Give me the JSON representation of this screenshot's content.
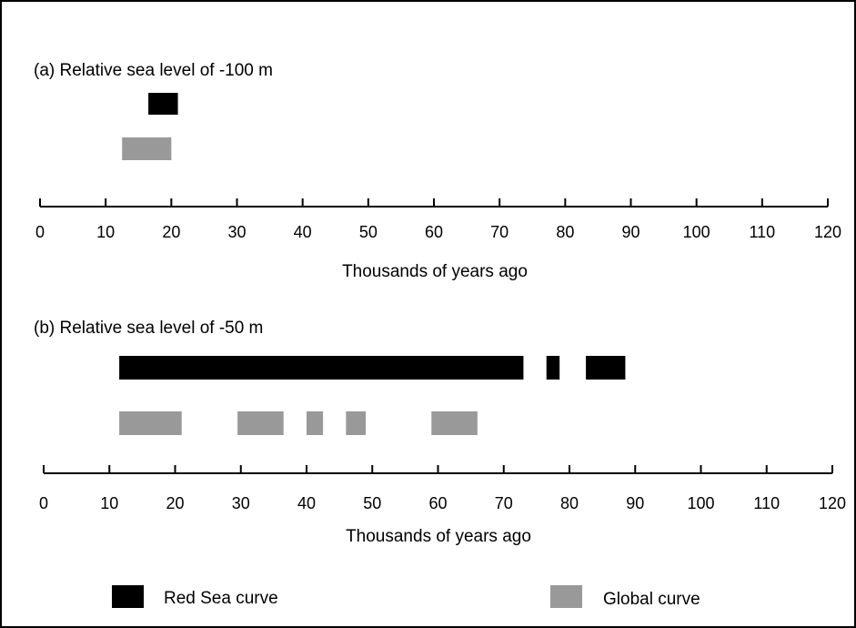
{
  "colors": {
    "red_sea": "#000000",
    "global": "#999999"
  },
  "legend": {
    "red_sea_label": "Red Sea curve",
    "global_label": "Global curve"
  },
  "chart_data": [
    {
      "type": "bar",
      "orientation": "horizontal-range",
      "title": "(a) Relative sea level of -100 m",
      "xlabel": "Thousands of years ago",
      "xlim": [
        0,
        120
      ],
      "xticks": [
        0,
        10,
        20,
        30,
        40,
        50,
        60,
        70,
        80,
        90,
        100,
        110,
        120
      ],
      "grid": false,
      "series": [
        {
          "name": "Red Sea curve",
          "color": "#000000",
          "intervals": [
            [
              16.5,
              21
            ]
          ]
        },
        {
          "name": "Global curve",
          "color": "#999999",
          "intervals": [
            [
              12.5,
              20
            ]
          ]
        }
      ]
    },
    {
      "type": "bar",
      "orientation": "horizontal-range",
      "title": "(b) Relative sea level of -50 m",
      "xlabel": "Thousands of years ago",
      "xlim": [
        0,
        120
      ],
      "xticks": [
        0,
        10,
        20,
        30,
        40,
        50,
        60,
        70,
        80,
        90,
        100,
        110,
        120
      ],
      "grid": false,
      "series": [
        {
          "name": "Red Sea curve",
          "color": "#000000",
          "intervals": [
            [
              11.5,
              73
            ],
            [
              76.5,
              78.5
            ],
            [
              82.5,
              88.5
            ]
          ]
        },
        {
          "name": "Global curve",
          "color": "#999999",
          "intervals": [
            [
              11.5,
              21
            ],
            [
              29.5,
              36.5
            ],
            [
              40,
              42.5
            ],
            [
              46,
              49
            ],
            [
              59,
              66
            ]
          ]
        }
      ]
    }
  ]
}
